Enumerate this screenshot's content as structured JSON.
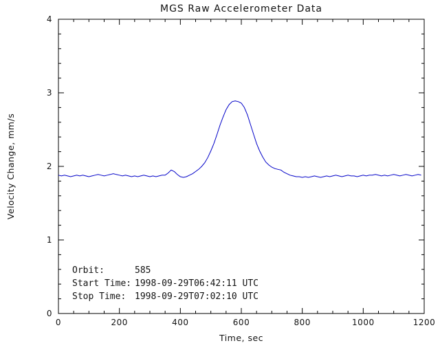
{
  "chart_data": {
    "type": "line",
    "title": "MGS Raw Accelerometer Data",
    "xlabel": "Time, sec",
    "ylabel": "Velocity Change, mm/s",
    "xlim": [
      0,
      1200
    ],
    "ylim": [
      0,
      4
    ],
    "x_ticks": [
      0,
      200,
      400,
      600,
      800,
      1000,
      1200
    ],
    "y_ticks": [
      0,
      1,
      2,
      3,
      4
    ],
    "x_minor_step": 50,
    "y_minor_step": 0.2,
    "grid": false,
    "legend_position": "none",
    "line_color": "#0000c8",
    "x": [
      0,
      10,
      20,
      30,
      40,
      50,
      60,
      70,
      80,
      90,
      100,
      110,
      120,
      130,
      140,
      150,
      160,
      170,
      180,
      190,
      200,
      210,
      220,
      230,
      240,
      250,
      260,
      270,
      280,
      290,
      300,
      310,
      320,
      330,
      340,
      350,
      360,
      370,
      380,
      390,
      400,
      410,
      420,
      430,
      440,
      450,
      460,
      470,
      480,
      490,
      500,
      510,
      520,
      530,
      540,
      550,
      560,
      570,
      580,
      590,
      600,
      610,
      620,
      630,
      640,
      650,
      660,
      670,
      680,
      690,
      700,
      710,
      720,
      730,
      740,
      750,
      760,
      770,
      780,
      790,
      800,
      810,
      820,
      830,
      840,
      850,
      860,
      870,
      880,
      890,
      900,
      910,
      920,
      930,
      940,
      950,
      960,
      970,
      980,
      990,
      1000,
      1010,
      1020,
      1030,
      1040,
      1050,
      1060,
      1070,
      1080,
      1090,
      1100,
      1110,
      1120,
      1130,
      1140,
      1150,
      1160,
      1170,
      1180,
      1190
    ],
    "series": [
      {
        "name": "velocity_change_mm_s",
        "values": [
          1.88,
          1.87,
          1.88,
          1.87,
          1.86,
          1.87,
          1.88,
          1.87,
          1.88,
          1.87,
          1.86,
          1.87,
          1.88,
          1.89,
          1.88,
          1.87,
          1.88,
          1.89,
          1.9,
          1.89,
          1.88,
          1.87,
          1.88,
          1.87,
          1.86,
          1.87,
          1.86,
          1.87,
          1.88,
          1.87,
          1.86,
          1.87,
          1.86,
          1.87,
          1.88,
          1.88,
          1.91,
          1.95,
          1.93,
          1.89,
          1.86,
          1.85,
          1.86,
          1.88,
          1.9,
          1.93,
          1.96,
          2.0,
          2.05,
          2.12,
          2.21,
          2.31,
          2.43,
          2.56,
          2.67,
          2.77,
          2.84,
          2.88,
          2.89,
          2.88,
          2.86,
          2.8,
          2.7,
          2.57,
          2.44,
          2.31,
          2.21,
          2.13,
          2.06,
          2.02,
          1.99,
          1.97,
          1.96,
          1.95,
          1.92,
          1.9,
          1.88,
          1.87,
          1.86,
          1.86,
          1.85,
          1.86,
          1.85,
          1.86,
          1.87,
          1.86,
          1.85,
          1.86,
          1.87,
          1.86,
          1.87,
          1.88,
          1.87,
          1.86,
          1.87,
          1.88,
          1.87,
          1.87,
          1.86,
          1.87,
          1.88,
          1.87,
          1.88,
          1.88,
          1.89,
          1.88,
          1.87,
          1.88,
          1.87,
          1.88,
          1.89,
          1.88,
          1.87,
          1.88,
          1.89,
          1.88,
          1.87,
          1.88,
          1.89,
          1.88
        ]
      }
    ],
    "annotations": [
      {
        "label": "Orbit:",
        "value": "585"
      },
      {
        "label": "Start Time:",
        "value": "1998-09-29T06:42:11 UTC"
      },
      {
        "label": "Stop Time:",
        "value": "1998-09-29T07:02:10 UTC"
      }
    ]
  }
}
